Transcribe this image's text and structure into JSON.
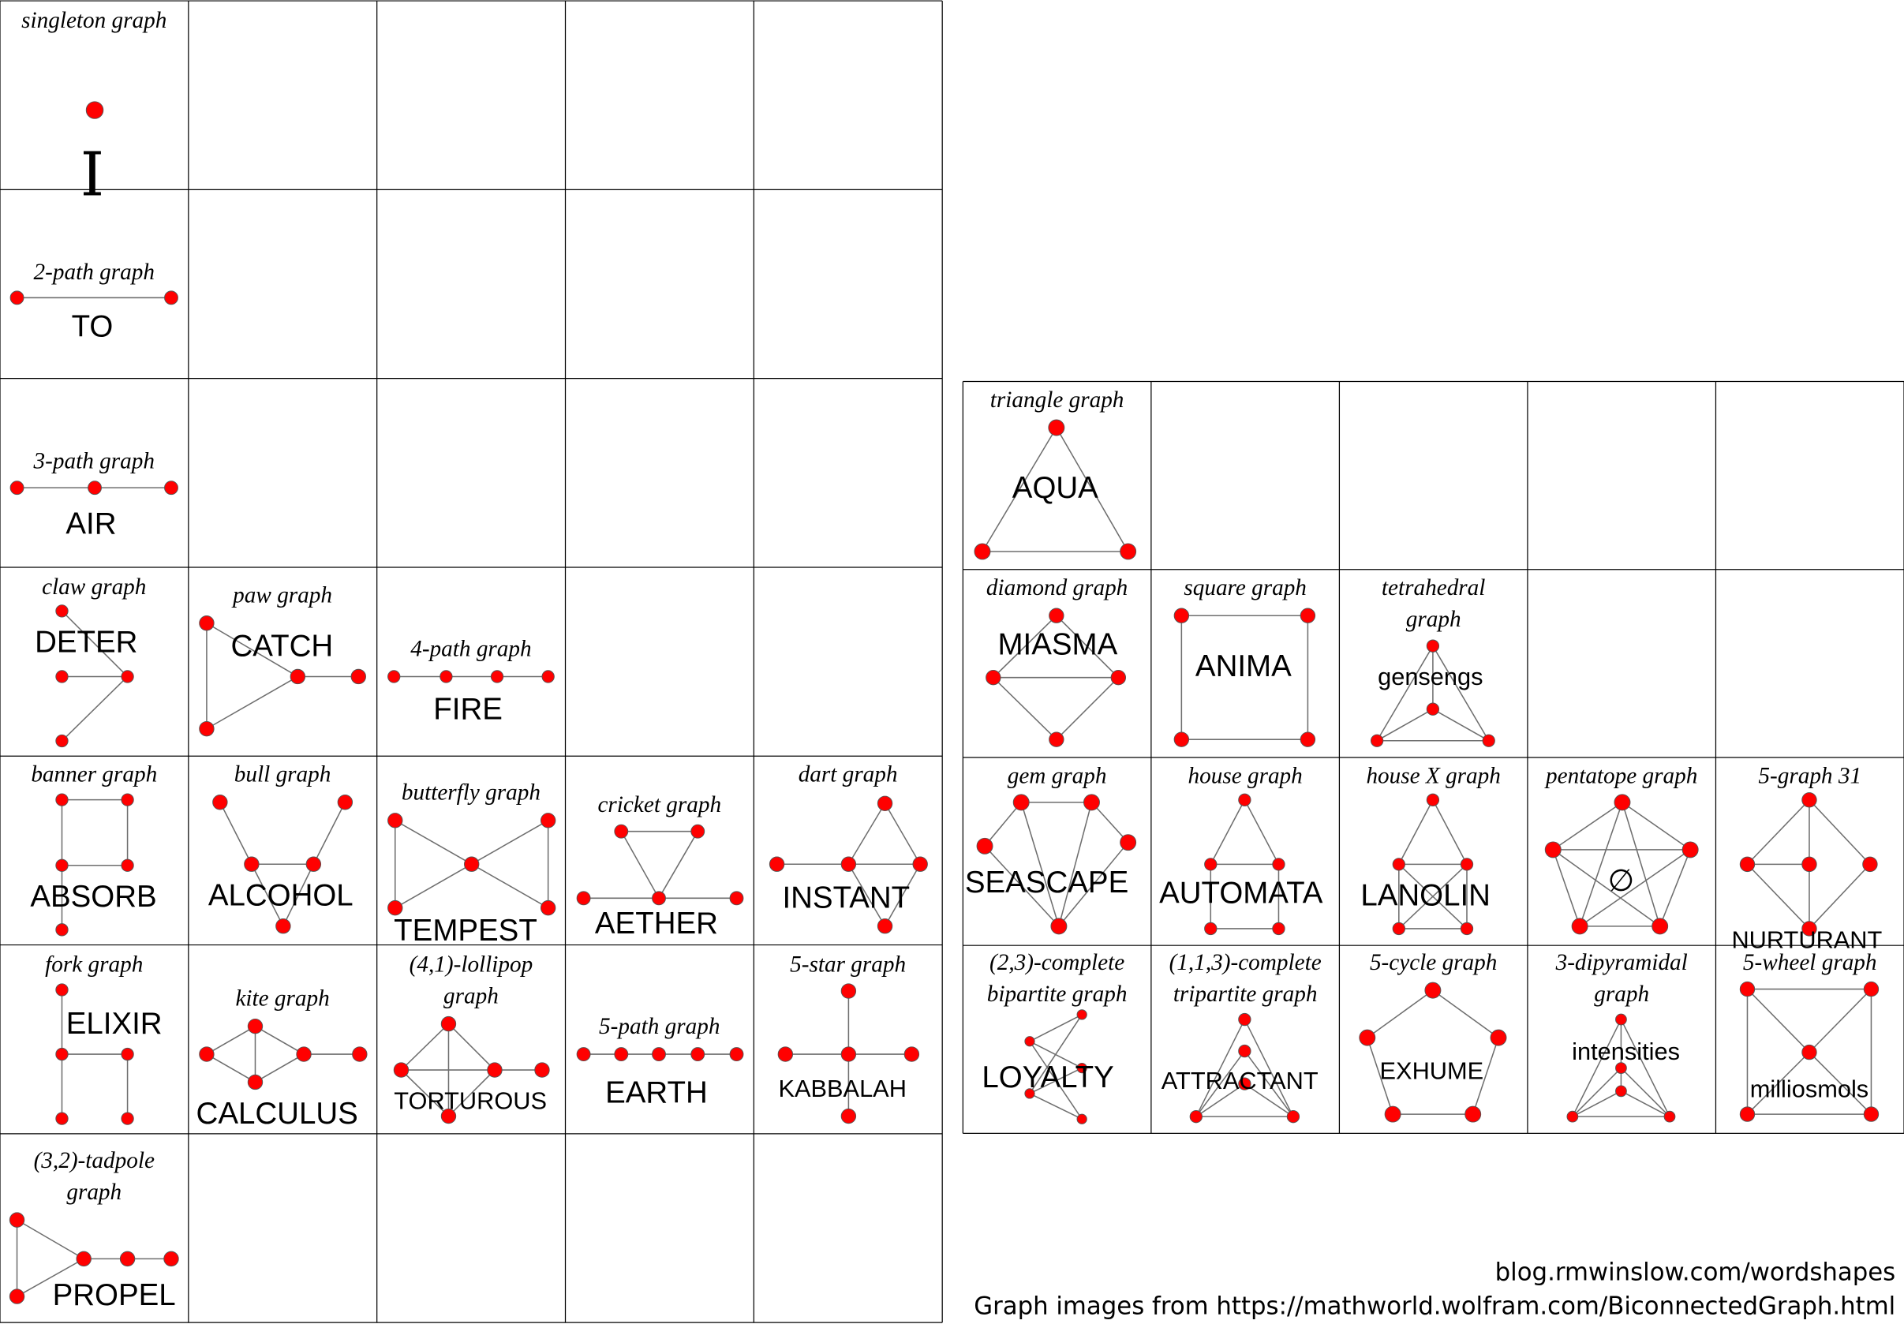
{
  "colors": {
    "node": "#ff0000",
    "edge": "#6e6e6e",
    "grid": "#000000"
  },
  "left_graphs": [
    {
      "id": "singleton",
      "title": [
        "singleton graph"
      ],
      "word": "I",
      "edges": []
    },
    {
      "id": "path2",
      "title": [
        "2-path graph"
      ],
      "word": "TO",
      "edges": [
        [
          0,
          1
        ]
      ]
    },
    {
      "id": "path3",
      "title": [
        "3-path graph"
      ],
      "word": "AIR",
      "edges": [
        [
          0,
          1
        ],
        [
          1,
          2
        ]
      ]
    },
    {
      "id": "claw",
      "title": [
        "claw graph"
      ],
      "word": "DETER",
      "edges": [
        [
          1,
          0
        ],
        [
          1,
          2
        ],
        [
          1,
          3
        ]
      ]
    },
    {
      "id": "paw",
      "title": [
        "paw graph"
      ],
      "word": "CATCH",
      "edges": [
        [
          0,
          1
        ],
        [
          0,
          2
        ],
        [
          1,
          2
        ],
        [
          2,
          3
        ]
      ]
    },
    {
      "id": "path4",
      "title": [
        "4-path graph"
      ],
      "word": "FIRE",
      "edges": [
        [
          0,
          1
        ],
        [
          1,
          2
        ],
        [
          2,
          3
        ]
      ]
    },
    {
      "id": "banner",
      "title": [
        "banner graph"
      ],
      "word": "ABSORB",
      "edges": [
        [
          0,
          1
        ],
        [
          0,
          2
        ],
        [
          1,
          3
        ],
        [
          2,
          3
        ],
        [
          2,
          4
        ]
      ]
    },
    {
      "id": "bull",
      "title": [
        "bull graph"
      ],
      "word": "ALCOHOL",
      "edges": [
        [
          0,
          2
        ],
        [
          1,
          3
        ],
        [
          2,
          3
        ],
        [
          2,
          4
        ],
        [
          3,
          4
        ]
      ]
    },
    {
      "id": "butterfly",
      "title": [
        "butterfly graph"
      ],
      "word": "TEMPEST",
      "edges": [
        [
          0,
          2
        ],
        [
          1,
          2
        ],
        [
          2,
          3
        ],
        [
          2,
          4
        ],
        [
          0,
          3
        ],
        [
          1,
          4
        ]
      ]
    },
    {
      "id": "cricket",
      "title": [
        "cricket graph"
      ],
      "word": "AETHER",
      "edges": [
        [
          0,
          1
        ],
        [
          0,
          2
        ],
        [
          1,
          2
        ],
        [
          3,
          2
        ],
        [
          2,
          4
        ]
      ]
    },
    {
      "id": "dart",
      "title": [
        "dart graph"
      ],
      "word": "INSTANT",
      "edges": [
        [
          0,
          2
        ],
        [
          0,
          3
        ],
        [
          1,
          2
        ],
        [
          2,
          3
        ],
        [
          2,
          4
        ],
        [
          3,
          4
        ]
      ]
    },
    {
      "id": "fork",
      "title": [
        "fork graph"
      ],
      "word": "ELIXIR",
      "edges": [
        [
          0,
          1
        ],
        [
          1,
          2
        ],
        [
          1,
          3
        ],
        [
          2,
          4
        ]
      ]
    },
    {
      "id": "kite",
      "title": [
        "kite graph"
      ],
      "word": "CALCULUS",
      "edges": [
        [
          0,
          1
        ],
        [
          0,
          2
        ],
        [
          0,
          4
        ],
        [
          1,
          4
        ],
        [
          2,
          4
        ],
        [
          2,
          3
        ]
      ]
    },
    {
      "id": "lollipop41",
      "title": [
        "(4,1)-lollipop",
        "graph"
      ],
      "word": "TORTUROUS",
      "edges": [
        [
          0,
          1
        ],
        [
          0,
          2
        ],
        [
          0,
          4
        ],
        [
          1,
          2
        ],
        [
          1,
          4
        ],
        [
          2,
          4
        ],
        [
          2,
          3
        ]
      ]
    },
    {
      "id": "path5",
      "title": [
        "5-path graph"
      ],
      "word": "EARTH",
      "edges": [
        [
          0,
          1
        ],
        [
          1,
          2
        ],
        [
          2,
          3
        ],
        [
          3,
          4
        ]
      ]
    },
    {
      "id": "star5",
      "title": [
        "5-star graph"
      ],
      "word": "KABBALAH",
      "edges": [
        [
          0,
          1
        ],
        [
          0,
          2
        ],
        [
          0,
          3
        ],
        [
          0,
          4
        ]
      ]
    },
    {
      "id": "tadpole32",
      "title": [
        "(3,2)-tadpole",
        "graph"
      ],
      "word": "PROPEL",
      "edges": [
        [
          0,
          1
        ],
        [
          0,
          2
        ],
        [
          1,
          2
        ],
        [
          2,
          3
        ],
        [
          3,
          4
        ]
      ]
    }
  ],
  "right_graphs": [
    {
      "id": "triangle",
      "title": [
        "triangle graph"
      ],
      "word": "AQUA",
      "edges": [
        [
          0,
          1
        ],
        [
          0,
          2
        ],
        [
          1,
          2
        ]
      ]
    },
    {
      "id": "diamond",
      "title": [
        "diamond graph"
      ],
      "word": "MIASMA",
      "edges": [
        [
          0,
          1
        ],
        [
          0,
          2
        ],
        [
          1,
          2
        ],
        [
          1,
          3
        ],
        [
          2,
          3
        ]
      ]
    },
    {
      "id": "square",
      "title": [
        "square graph"
      ],
      "word": "ANIMA",
      "edges": [
        [
          0,
          1
        ],
        [
          1,
          3
        ],
        [
          3,
          2
        ],
        [
          2,
          0
        ]
      ]
    },
    {
      "id": "tetrahedral",
      "title": [
        "tetrahedral",
        "graph"
      ],
      "word": "gensengs",
      "edges": [
        [
          0,
          1
        ],
        [
          0,
          2
        ],
        [
          0,
          3
        ],
        [
          1,
          2
        ],
        [
          1,
          3
        ],
        [
          2,
          3
        ]
      ]
    },
    {
      "id": "gem",
      "title": [
        "gem graph"
      ],
      "word": "SEASCAPE",
      "edges": [
        [
          0,
          1
        ],
        [
          0,
          2
        ],
        [
          1,
          3
        ],
        [
          2,
          4
        ],
        [
          3,
          4
        ],
        [
          0,
          4
        ],
        [
          1,
          4
        ]
      ]
    },
    {
      "id": "house",
      "title": [
        "house graph"
      ],
      "word": "AUTOMATA",
      "edges": [
        [
          0,
          1
        ],
        [
          0,
          2
        ],
        [
          1,
          2
        ],
        [
          1,
          3
        ],
        [
          2,
          4
        ],
        [
          3,
          4
        ]
      ]
    },
    {
      "id": "houseX",
      "title": [
        "house X graph"
      ],
      "word": "LANOLIN",
      "edges": [
        [
          0,
          1
        ],
        [
          0,
          2
        ],
        [
          1,
          2
        ],
        [
          1,
          3
        ],
        [
          2,
          4
        ],
        [
          3,
          4
        ],
        [
          1,
          4
        ],
        [
          2,
          3
        ]
      ]
    },
    {
      "id": "pentatope",
      "title": [
        "pentatope graph"
      ],
      "word": "∅",
      "edges": [
        [
          0,
          1
        ],
        [
          0,
          2
        ],
        [
          0,
          3
        ],
        [
          0,
          4
        ],
        [
          1,
          2
        ],
        [
          1,
          3
        ],
        [
          1,
          4
        ],
        [
          2,
          3
        ],
        [
          2,
          4
        ],
        [
          3,
          4
        ]
      ]
    },
    {
      "id": "graph5_31",
      "title": [
        "5-graph 31"
      ],
      "word": "NURTURANT",
      "edges": [
        [
          0,
          1
        ],
        [
          0,
          2
        ],
        [
          0,
          3
        ],
        [
          1,
          2
        ],
        [
          2,
          4
        ],
        [
          1,
          4
        ],
        [
          3,
          4
        ]
      ]
    },
    {
      "id": "bipartite23",
      "title": [
        "(2,3)-complete",
        "bipartite graph"
      ],
      "word": "LOYALTY",
      "edges": [
        [
          0,
          2
        ],
        [
          0,
          3
        ],
        [
          0,
          4
        ],
        [
          1,
          2
        ],
        [
          1,
          3
        ],
        [
          1,
          4
        ]
      ]
    },
    {
      "id": "tripartite113",
      "title": [
        "(1,1,3)-complete",
        "tripartite graph"
      ],
      "word": "ATTRACTANT",
      "edges": [
        [
          3,
          4
        ],
        [
          3,
          0
        ],
        [
          3,
          1
        ],
        [
          3,
          2
        ],
        [
          4,
          0
        ],
        [
          4,
          1
        ],
        [
          4,
          2
        ]
      ]
    },
    {
      "id": "cycle5",
      "title": [
        "5-cycle graph"
      ],
      "word": "EXHUME",
      "edges": [
        [
          0,
          1
        ],
        [
          0,
          2
        ],
        [
          1,
          3
        ],
        [
          2,
          4
        ],
        [
          3,
          4
        ]
      ]
    },
    {
      "id": "dipyramidal3",
      "title": [
        "3-dipyramidal",
        "graph"
      ],
      "word": "intensities",
      "edges": [
        [
          0,
          1
        ],
        [
          0,
          3
        ],
        [
          0,
          4
        ],
        [
          1,
          2
        ],
        [
          1,
          3
        ],
        [
          1,
          4
        ],
        [
          2,
          3
        ],
        [
          2,
          4
        ],
        [
          3,
          4
        ]
      ]
    },
    {
      "id": "wheel5",
      "title": [
        "5-wheel graph"
      ],
      "word": "milliosmols",
      "edges": [
        [
          0,
          1
        ],
        [
          0,
          3
        ],
        [
          1,
          4
        ],
        [
          3,
          4
        ],
        [
          2,
          0
        ],
        [
          2,
          1
        ],
        [
          2,
          3
        ],
        [
          2,
          4
        ]
      ]
    }
  ],
  "footer": {
    "line1": "blog.rmwinslow.com/wordshapes",
    "line2": "Graph images from https://mathworld.wolfram.com/BiconnectedGraph.html"
  }
}
